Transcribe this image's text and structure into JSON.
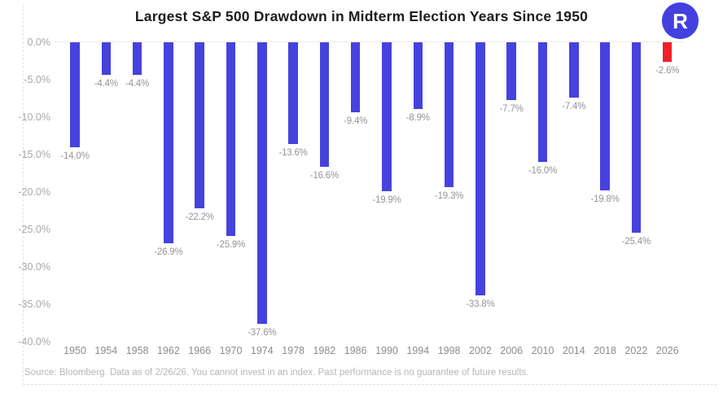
{
  "header": {
    "title": "Largest S&P 500 Drawdown in Midterm Election Years Since 1950",
    "logo_letter": "R",
    "logo_color": "#4440e0"
  },
  "chart_data": {
    "type": "bar",
    "title": "Largest S&P 500 Drawdown in Midterm Election Years Since 1950",
    "categories": [
      "1950",
      "1954",
      "1958",
      "1962",
      "1966",
      "1970",
      "1974",
      "1978",
      "1982",
      "1986",
      "1990",
      "1994",
      "1998",
      "2002",
      "2006",
      "2010",
      "2014",
      "2018",
      "2022",
      "2026"
    ],
    "values": [
      -14.0,
      -4.4,
      -4.4,
      -26.9,
      -22.2,
      -25.9,
      -37.6,
      -13.6,
      -16.6,
      -9.4,
      -19.9,
      -8.9,
      -19.3,
      -33.8,
      -7.7,
      -16.0,
      -7.4,
      -19.8,
      -25.4,
      -2.6
    ],
    "labels": [
      "-14.0%",
      "-4.4%",
      "-4.4%",
      "-26.9%",
      "-22.2%",
      "-25.9%",
      "-37.6%",
      "-13.6%",
      "-16.6%",
      "-9.4%",
      "-19.9%",
      "-8.9%",
      "-19.3%",
      "-33.8%",
      "-7.7%",
      "-16.0%",
      "-7.4%",
      "-19.8%",
      "-25.4%",
      "-2.6%"
    ],
    "bar_color": "#4642dd",
    "highlight_color": "#ee2127",
    "highlight_index": 19,
    "xlabel": "",
    "ylabel": "",
    "ylim": [
      -40,
      0
    ],
    "ytick_labels": [
      "0.0%",
      "-5.0%",
      "-10.0%",
      "-15.0%",
      "-20.0%",
      "-25.0%",
      "-30.0%",
      "-35.0%",
      "-40.0%"
    ],
    "ytick_values": [
      0,
      -5,
      -10,
      -15,
      -20,
      -25,
      -30,
      -35,
      -40
    ],
    "grid": "zero-line-only",
    "legend": "none"
  },
  "footer": {
    "source": "Source: Bloomberg. Data as of 2/26/26. You cannot invest in an index. Past performance is no guarantee of future results."
  }
}
